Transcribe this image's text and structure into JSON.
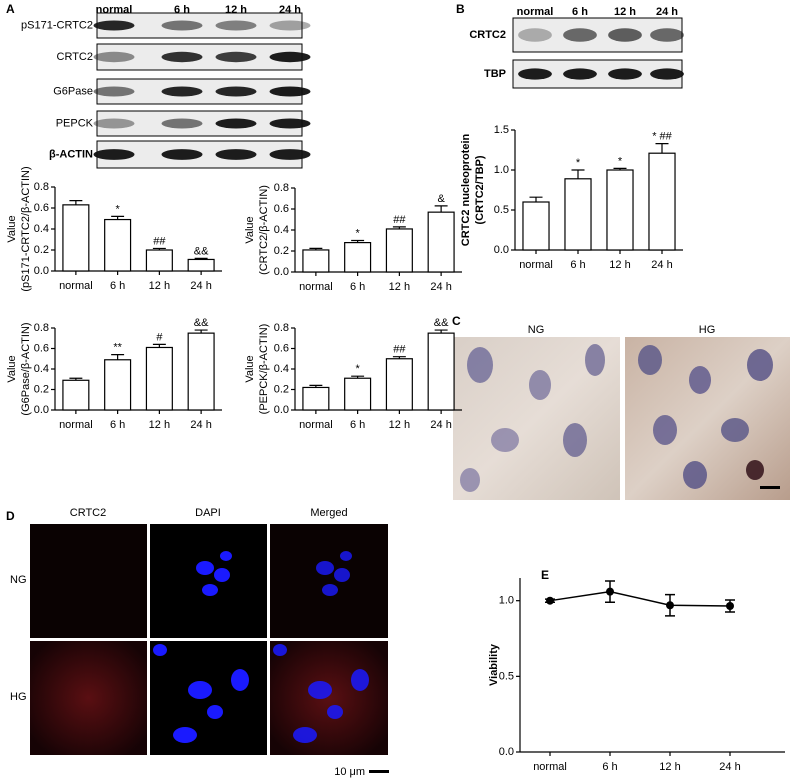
{
  "panel_labels": [
    "A",
    "B",
    "C",
    "D",
    "E"
  ],
  "blots": [
    {
      "lanes": [
        "normal",
        "6 h",
        "12 h",
        "24 h"
      ],
      "rows": [
        "pS171-CRTC2",
        "CRTC2",
        "G6Pase",
        "PEPCK",
        "β-ACTIN"
      ]
    },
    {
      "lanes": [
        "normal",
        "6 h",
        "12 h",
        "24 h"
      ],
      "rows": [
        "CRTC2",
        "TBP"
      ]
    }
  ],
  "micrographs": {
    "labels": [
      "NG",
      "HG"
    ]
  },
  "fluorescence": {
    "columns": [
      "CRTC2",
      "DAPI",
      "Merged"
    ],
    "rows": [
      "NG",
      "HG"
    ],
    "scale_bar": "10 μm"
  },
  "chart_data": [
    {
      "type": "bar",
      "y_label": [
        "Value",
        "(pS171-CRTC2/β-ACTIN)"
      ],
      "categories": [
        "normal",
        "6 h",
        "12 h",
        "24 h"
      ],
      "values": [
        0.63,
        0.49,
        0.2,
        0.11
      ],
      "errors": [
        0.04,
        0.03,
        0.015,
        0.01
      ],
      "annotations": [
        null,
        "*",
        "##",
        "&&"
      ],
      "color": "#ffffff",
      "ylim": [
        0,
        0.8
      ],
      "yticks": [
        {
          "value": 0,
          "label": "0.0"
        },
        0.2,
        0.4,
        0.6,
        0.8
      ]
    },
    {
      "type": "bar",
      "y_label": [
        "Value",
        "(CRTC2/β-ACTIN)"
      ],
      "categories": [
        "normal",
        "6 h",
        "12 h",
        "24 h"
      ],
      "values": [
        0.21,
        0.28,
        0.41,
        0.57
      ],
      "errors": [
        0.015,
        0.02,
        0.02,
        0.06
      ],
      "annotations": [
        null,
        "*",
        "##",
        "&"
      ],
      "color": "#ffffff",
      "ylim": [
        0,
        0.8
      ],
      "yticks": [
        {
          "value": 0,
          "label": "0.0"
        },
        0.2,
        0.4,
        0.6,
        0.8
      ]
    },
    {
      "type": "bar",
      "y_label": [
        "Value",
        "(G6Pase/β-ACTIN)"
      ],
      "categories": [
        "normal",
        "6 h",
        "12 h",
        "24 h"
      ],
      "values": [
        0.29,
        0.49,
        0.61,
        0.75
      ],
      "errors": [
        0.02,
        0.05,
        0.03,
        0.03
      ],
      "annotations": [
        null,
        "**",
        "#",
        "&&"
      ],
      "color": "#ffffff",
      "ylim": [
        0,
        0.8
      ],
      "yticks": [
        {
          "value": 0,
          "label": "0.0"
        },
        0.2,
        0.4,
        0.6,
        0.8
      ]
    },
    {
      "type": "bar",
      "y_label": [
        "Value",
        "(PEPCK/β-ACTIN)"
      ],
      "categories": [
        "normal",
        "6 h",
        "12 h",
        "24 h"
      ],
      "values": [
        0.22,
        0.31,
        0.5,
        0.75
      ],
      "errors": [
        0.02,
        0.02,
        0.02,
        0.03
      ],
      "annotations": [
        null,
        "*",
        "##",
        "&&"
      ],
      "color": "#ffffff",
      "ylim": [
        0,
        0.8
      ],
      "yticks": [
        {
          "value": 0,
          "label": "0.0"
        },
        0.2,
        0.4,
        0.6,
        0.8
      ]
    },
    {
      "type": "bar",
      "y_label": [
        "CRTC2 nucleoprotein",
        "(CRTC2/TBP)"
      ],
      "categories": [
        "normal",
        "6 h",
        "12 h",
        "24 h"
      ],
      "values": [
        0.6,
        0.89,
        1.0,
        1.21
      ],
      "errors": [
        0.06,
        0.11,
        0.02,
        0.12
      ],
      "annotations": [
        null,
        "*",
        "*",
        "* ##"
      ],
      "color": "#ffffff",
      "ylim": [
        0,
        1.5
      ],
      "yticks": [
        {
          "value": 0,
          "label": "0.0"
        },
        0.5,
        {
          "value": 1,
          "label": "1.0"
        },
        1.5
      ]
    },
    {
      "type": "line",
      "y_label": [
        "Viability"
      ],
      "categories": [
        "normal",
        "6 h",
        "12 h",
        "24 h"
      ],
      "values": [
        1.0,
        1.06,
        0.97,
        0.965
      ],
      "errors": [
        0.01,
        0.07,
        0.07,
        0.04
      ],
      "color": "#000000",
      "ylim": [
        0,
        1.15
      ],
      "yticks": [
        {
          "value": 0,
          "label": "0.0"
        },
        0.5,
        {
          "value": 1,
          "label": "1.0"
        }
      ]
    }
  ]
}
